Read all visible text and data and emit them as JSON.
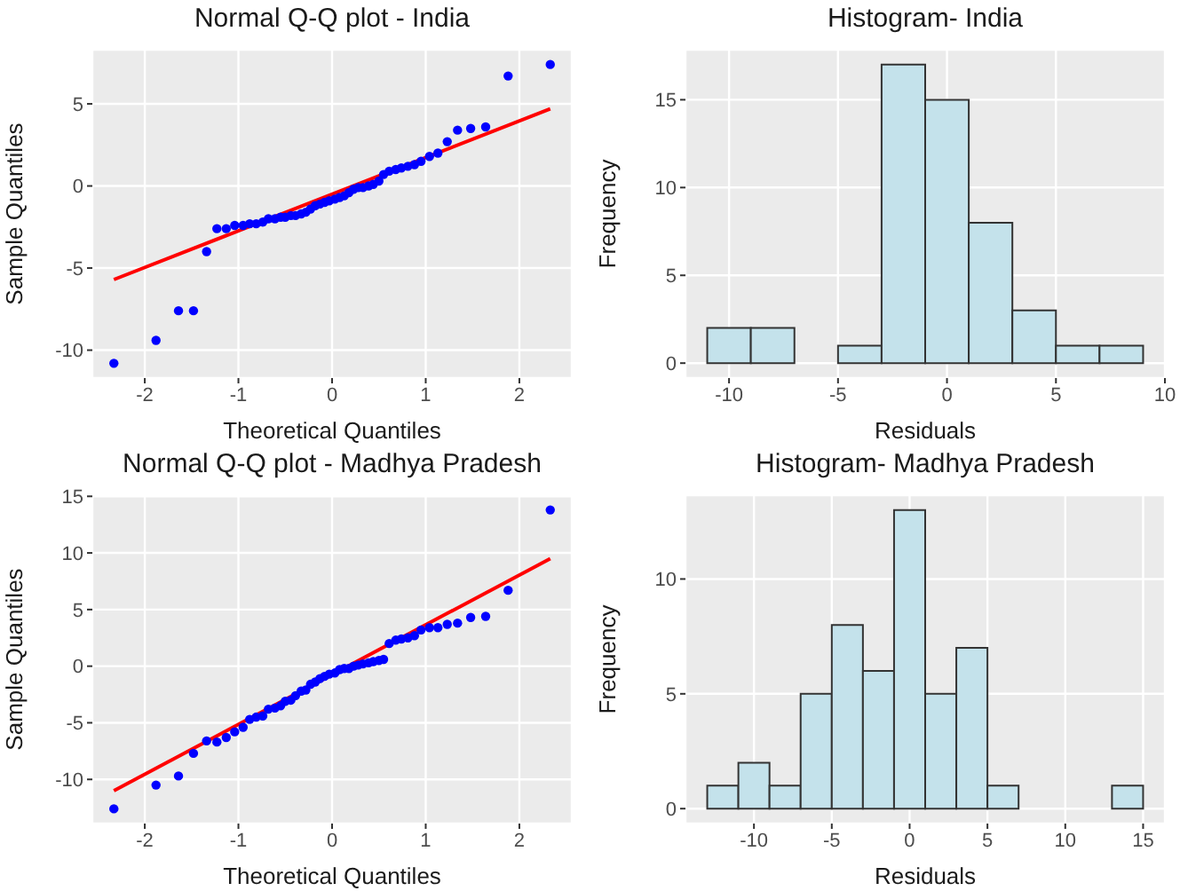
{
  "chart_data": [
    {
      "type": "scatter",
      "title": "Normal Q-Q plot - India",
      "xlabel": "Theoretical Quantiles",
      "ylabel": "Sample Quantiles",
      "xlim": [
        -2.56,
        2.56
      ],
      "ylim": [
        -11.7,
        8.3
      ],
      "xticks": [
        -2,
        -1,
        0,
        1,
        2
      ],
      "yticks": [
        -10,
        -5,
        0,
        5
      ],
      "grid": true,
      "legend": false,
      "series": [
        {
          "type": "scatter",
          "marker": "circle",
          "color": "#0000ff",
          "x": [
            -2.33,
            -1.88,
            -1.64,
            -1.48,
            -1.34,
            -1.23,
            -1.13,
            -1.04,
            -0.95,
            -0.88,
            -0.81,
            -0.74,
            -0.68,
            -0.61,
            -0.55,
            -0.5,
            -0.44,
            -0.39,
            -0.33,
            -0.28,
            -0.23,
            -0.18,
            -0.13,
            -0.08,
            -0.03,
            0.03,
            0.08,
            0.13,
            0.18,
            0.23,
            0.28,
            0.33,
            0.39,
            0.44,
            0.5,
            0.55,
            0.61,
            0.68,
            0.74,
            0.81,
            0.88,
            0.95,
            1.04,
            1.13,
            1.23,
            1.34,
            1.48,
            1.64,
            1.88,
            2.33
          ],
          "values": [
            -10.8,
            -9.4,
            -7.6,
            -7.6,
            -4.0,
            -2.6,
            -2.6,
            -2.4,
            -2.4,
            -2.3,
            -2.3,
            -2.2,
            -2.0,
            -2.0,
            -1.9,
            -1.9,
            -1.8,
            -1.8,
            -1.7,
            -1.6,
            -1.4,
            -1.2,
            -1.1,
            -1.0,
            -0.9,
            -0.8,
            -0.7,
            -0.6,
            -0.4,
            -0.2,
            -0.1,
            -0.1,
            0,
            0.1,
            0.3,
            0.7,
            0.9,
            1.0,
            1.1,
            1.2,
            1.3,
            1.5,
            1.8,
            2.0,
            2.7,
            3.4,
            3.5,
            3.6,
            6.7,
            7.4
          ]
        },
        {
          "type": "line",
          "color": "#ff0000",
          "x": [
            -2.33,
            2.33
          ],
          "values": [
            -5.7,
            4.7
          ]
        }
      ]
    },
    {
      "type": "histogram",
      "title": "Histogram- India",
      "xlabel": "Residuals",
      "ylabel": "Frequency",
      "xlim": [
        -12,
        10
      ],
      "ylim": [
        -0.85,
        17.85
      ],
      "xticks": [
        -10,
        -5,
        0,
        5,
        10
      ],
      "yticks": [
        0,
        5,
        10,
        15
      ],
      "grid": true,
      "legend": false,
      "color": "#c4e2eb",
      "bins": [
        -11,
        -9,
        -7,
        -5,
        -3,
        -1,
        1,
        3,
        5,
        7,
        9
      ],
      "values": [
        2,
        2,
        0,
        1,
        17,
        15,
        8,
        3,
        1,
        1
      ]
    },
    {
      "type": "scatter",
      "title": "Normal Q-Q plot - Madhya Pradesh",
      "xlabel": "Theoretical Quantiles",
      "ylabel": "Sample Quantiles",
      "xlim": [
        -2.56,
        2.56
      ],
      "ylim": [
        -13.9,
        15.1
      ],
      "xticks": [
        -2,
        -1,
        0,
        1,
        2
      ],
      "yticks": [
        -10,
        -5,
        0,
        5,
        10,
        15
      ],
      "grid": true,
      "legend": false,
      "series": [
        {
          "type": "scatter",
          "marker": "circle",
          "color": "#0000ff",
          "x": [
            -2.33,
            -1.88,
            -1.64,
            -1.48,
            -1.34,
            -1.23,
            -1.13,
            -1.04,
            -0.95,
            -0.88,
            -0.81,
            -0.74,
            -0.68,
            -0.61,
            -0.55,
            -0.5,
            -0.44,
            -0.39,
            -0.33,
            -0.28,
            -0.23,
            -0.18,
            -0.13,
            -0.08,
            -0.03,
            0.03,
            0.08,
            0.13,
            0.18,
            0.23,
            0.28,
            0.33,
            0.39,
            0.44,
            0.5,
            0.55,
            0.61,
            0.68,
            0.74,
            0.81,
            0.88,
            0.95,
            1.04,
            1.13,
            1.23,
            1.34,
            1.48,
            1.64,
            1.88,
            2.33
          ],
          "values": [
            -12.6,
            -10.5,
            -9.7,
            -7.7,
            -6.6,
            -6.7,
            -6.3,
            -5.8,
            -5.4,
            -4.7,
            -4.5,
            -4.4,
            -3.8,
            -3.7,
            -3.5,
            -3.1,
            -3.0,
            -2.6,
            -2.2,
            -2.1,
            -1.6,
            -1.4,
            -1.1,
            -0.9,
            -0.7,
            -0.6,
            -0.3,
            -0.2,
            -0.2,
            0.0,
            0.1,
            0.2,
            0.3,
            0.4,
            0.5,
            0.6,
            2.0,
            2.3,
            2.4,
            2.5,
            2.7,
            3.2,
            3.4,
            3.4,
            3.7,
            3.8,
            4.3,
            4.4,
            6.7,
            13.8
          ]
        },
        {
          "type": "line",
          "color": "#ff0000",
          "x": [
            -2.33,
            2.33
          ],
          "values": [
            -11.0,
            9.5
          ]
        }
      ]
    },
    {
      "type": "histogram",
      "title": "Histogram- Madhya Pradesh",
      "xlabel": "Residuals",
      "ylabel": "Frequency",
      "xlim": [
        -14.4,
        16.4
      ],
      "ylim": [
        -0.65,
        13.65
      ],
      "xticks": [
        -10,
        -5,
        0,
        5,
        10,
        15
      ],
      "yticks": [
        0,
        5,
        10
      ],
      "grid": true,
      "legend": false,
      "color": "#c4e2eb",
      "bins": [
        -13,
        -11,
        -9,
        -7,
        -5,
        -3,
        -1,
        1,
        3,
        5,
        7,
        9,
        11,
        13,
        15
      ],
      "values": [
        1,
        2,
        1,
        5,
        8,
        6,
        13,
        5,
        7,
        1,
        0,
        0,
        0,
        1
      ]
    }
  ]
}
